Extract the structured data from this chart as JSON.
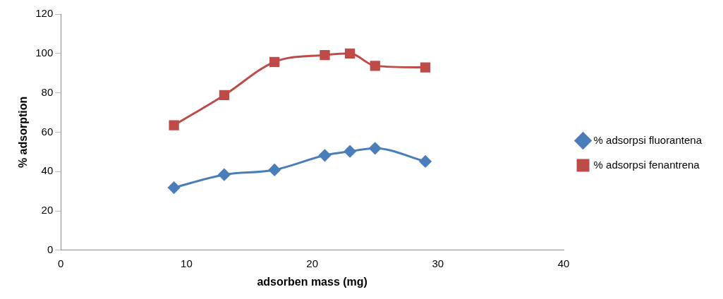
{
  "chart_data": {
    "type": "line",
    "xlabel": "adsorben mass (mg)",
    "ylabel": "% adsorption",
    "xlim": [
      0,
      40
    ],
    "xticks": [
      0,
      10,
      20,
      30,
      40
    ],
    "ylim": [
      0,
      120
    ],
    "yticks": [
      0,
      20,
      40,
      60,
      80,
      100,
      120
    ],
    "grid": false,
    "legend": "right",
    "series": [
      {
        "name": "% adsorpsi fluorantena",
        "color": "#4a7ebb",
        "marker": "diamond",
        "x": [
          9,
          13,
          17,
          21,
          23,
          25,
          29
        ],
        "values": [
          31.8,
          38.4,
          40.8,
          48.2,
          50.2,
          51.8,
          45.1
        ]
      },
      {
        "name": "% adsorpsi fenantrena",
        "color": "#be4b48",
        "marker": "square",
        "x": [
          9,
          13,
          17,
          21,
          23,
          25,
          29
        ],
        "values": [
          63.5,
          78.8,
          95.7,
          99.2,
          100,
          93.7,
          92.9
        ]
      }
    ]
  }
}
